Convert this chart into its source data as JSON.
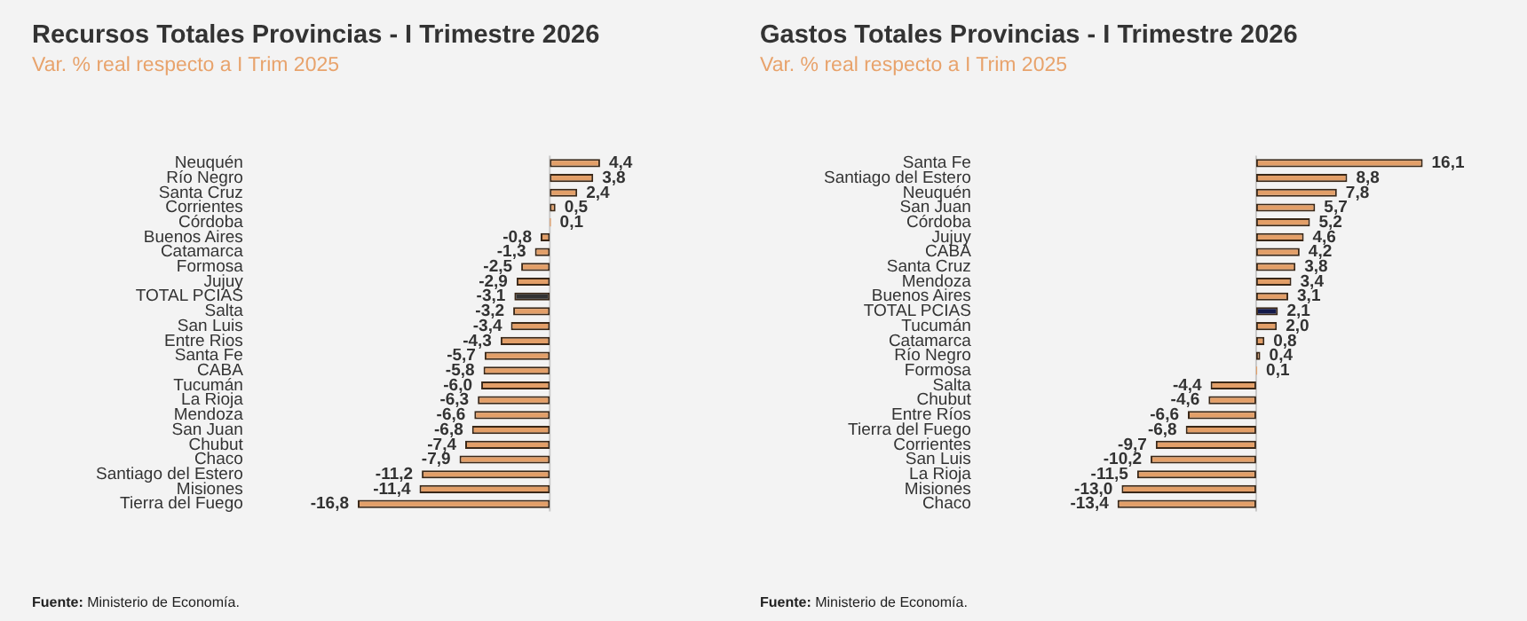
{
  "chart_data": [
    {
      "type": "bar",
      "orientation": "horizontal",
      "title": "Recursos Totales Provincias - I Trimestre 2026",
      "subtitle": "Var. % real respecto a I Trim 2025",
      "categories": [
        "Neuquén",
        "Río Negro",
        "Santa Cruz",
        "Corrientes",
        "Córdoba",
        "Buenos Aires",
        "Catamarca",
        "Formosa",
        "Jujuy",
        "TOTAL PCIAS",
        "Salta",
        "San Luis",
        "Entre Rios",
        "Santa Fe",
        "CABA",
        "Tucumán",
        "La Rioja",
        "Mendoza",
        "San Juan",
        "Chubut",
        "Chaco",
        "Santiago del Estero",
        "Misiones",
        "Tierra del Fuego"
      ],
      "values": [
        4.4,
        3.8,
        2.4,
        0.5,
        0.1,
        -0.8,
        -1.3,
        -2.5,
        -2.9,
        -3.1,
        -3.2,
        -3.4,
        -4.3,
        -5.7,
        -5.8,
        -6.0,
        -6.3,
        -6.6,
        -6.8,
        -7.4,
        -7.9,
        -11.2,
        -11.4,
        -16.8
      ],
      "value_labels": [
        "4,4",
        "3,8",
        "2,4",
        "0,5",
        "0,1",
        "-0,8",
        "-1,3",
        "-2,5",
        "-2,9",
        "-3,1",
        "-3,2",
        "-3,4",
        "-4,3",
        "-5,7",
        "-5,8",
        "-6,0",
        "-6,3",
        "-6,6",
        "-6,8",
        "-7,4",
        "-7,9",
        "-11,2",
        "-11,4",
        "-16,8"
      ],
      "colors": [
        "#e39f68",
        "#e39f68",
        "#e39f68",
        "#e39f68",
        "#e39f68",
        "#e39f68",
        "#e39f68",
        "#e39f68",
        "#e39f68",
        "#333333",
        "#e39f68",
        "#e39f68",
        "#e39f68",
        "#e39f68",
        "#e39f68",
        "#e39f68",
        "#e39f68",
        "#e39f68",
        "#e39f68",
        "#e39f68",
        "#e39f68",
        "#e39f68",
        "#e39f68",
        "#e39f68"
      ],
      "annotations": [
        "Fuente: Ministerio de Economía."
      ]
    },
    {
      "type": "bar",
      "orientation": "horizontal",
      "title": "Gastos Totales Provincias - I Trimestre 2026",
      "subtitle": "Var. % real respecto a I Trim 2025",
      "categories": [
        "Santa Fe",
        "Santiago del Estero",
        "Neuquén",
        "San Juan",
        "Córdoba",
        "Jujuy",
        "CABA",
        "Santa Cruz",
        "Mendoza",
        "Buenos Aires",
        "TOTAL PCIAS",
        "Tucumán",
        "Catamarca",
        "Río Negro",
        "Formosa",
        "Salta",
        "Chubut",
        "Entre Ríos",
        "Tierra del Fuego",
        "Corrientes",
        "San Luis",
        "La Rioja",
        "Misiones",
        "Chaco"
      ],
      "values": [
        16.1,
        8.8,
        7.8,
        5.7,
        5.2,
        4.6,
        4.2,
        3.8,
        3.4,
        3.1,
        2.1,
        2.0,
        0.8,
        0.4,
        0.1,
        -4.4,
        -4.6,
        -6.6,
        -6.8,
        -9.7,
        -10.2,
        -11.5,
        -13.0,
        -13.4
      ],
      "value_labels": [
        "16,1",
        "8,8",
        "7,8",
        "5,7",
        "5,2",
        "4,6",
        "4,2",
        "3,8",
        "3,4",
        "3,1",
        "2,1",
        "2,0",
        "0,8",
        "0,4",
        "0,1",
        "-4,4",
        "-4,6",
        "-6,6",
        "-6,8",
        "-9,7",
        "-10,2",
        "-11,5",
        "-13,0",
        "-13,4"
      ],
      "colors": [
        "#e39f68",
        "#e39f68",
        "#e39f68",
        "#e39f68",
        "#e39f68",
        "#e39f68",
        "#e39f68",
        "#e39f68",
        "#e39f68",
        "#e39f68",
        "#141a4a",
        "#e39f68",
        "#e39f68",
        "#e39f68",
        "#e39f68",
        "#e39f68",
        "#e39f68",
        "#e39f68",
        "#e39f68",
        "#e39f68",
        "#e39f68",
        "#e39f68",
        "#e39f68",
        "#e39f68"
      ],
      "annotations": [
        "Fuente: Ministerio de Economía."
      ]
    }
  ]
}
